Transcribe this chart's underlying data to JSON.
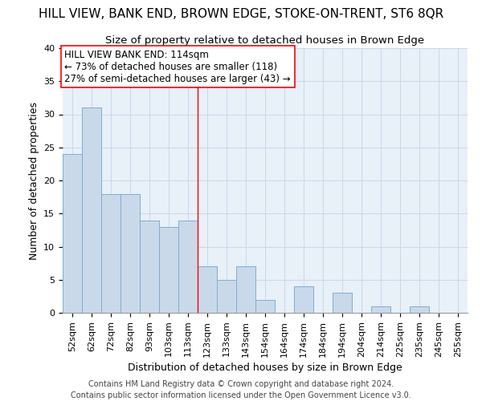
{
  "title": "HILL VIEW, BANK END, BROWN EDGE, STOKE-ON-TRENT, ST6 8QR",
  "subtitle": "Size of property relative to detached houses in Brown Edge",
  "xlabel": "Distribution of detached houses by size in Brown Edge",
  "ylabel": "Number of detached properties",
  "bar_labels": [
    "52sqm",
    "62sqm",
    "72sqm",
    "82sqm",
    "93sqm",
    "103sqm",
    "113sqm",
    "123sqm",
    "133sqm",
    "143sqm",
    "154sqm",
    "164sqm",
    "174sqm",
    "184sqm",
    "194sqm",
    "204sqm",
    "214sqm",
    "225sqm",
    "235sqm",
    "245sqm",
    "255sqm"
  ],
  "bar_values": [
    24,
    31,
    18,
    18,
    14,
    13,
    14,
    7,
    5,
    7,
    2,
    0,
    4,
    0,
    3,
    0,
    1,
    0,
    1,
    0,
    0
  ],
  "bar_color": "#c9d9ea",
  "bar_edge_color": "#7bafd4",
  "bar_width": 1.0,
  "ylim": [
    0,
    40
  ],
  "yticks": [
    0,
    5,
    10,
    15,
    20,
    25,
    30,
    35,
    40
  ],
  "property_line_x": 6.5,
  "annotation_line1": "HILL VIEW BANK END: 114sqm",
  "annotation_line2": "← 73% of detached houses are smaller (118)",
  "annotation_line3": "27% of semi-detached houses are larger (43) →",
  "footer_line1": "Contains HM Land Registry data © Crown copyright and database right 2024.",
  "footer_line2": "Contains public sector information licensed under the Open Government Licence v3.0.",
  "title_fontsize": 11,
  "subtitle_fontsize": 9.5,
  "axis_label_fontsize": 9,
  "tick_fontsize": 8,
  "annotation_fontsize": 8.5,
  "footer_fontsize": 7,
  "grid_color": "#c8d8ea",
  "background_color": "#e8f0f8"
}
